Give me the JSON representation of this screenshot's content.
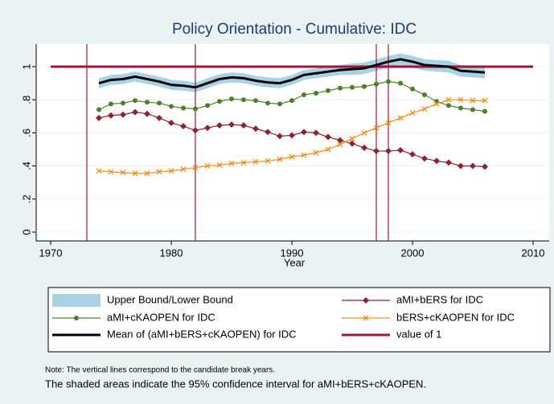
{
  "chart_data": {
    "type": "line",
    "title": "Policy Orientation - Cumulative: IDC",
    "x_label": "Year",
    "x": [
      1974,
      1975,
      1976,
      1977,
      1978,
      1979,
      1980,
      1981,
      1982,
      1983,
      1984,
      1985,
      1986,
      1987,
      1988,
      1989,
      1990,
      1991,
      1992,
      1993,
      1994,
      1995,
      1996,
      1997,
      1998,
      1999,
      2000,
      2001,
      2002,
      2003,
      2004,
      2005,
      2006
    ],
    "xlim": [
      1970,
      2010
    ],
    "xticks": [
      1970,
      1980,
      1990,
      2000,
      2010
    ],
    "ylim": [
      0,
      1
    ],
    "yticks": [
      0,
      {
        "value": 0.2,
        "label": ".2"
      },
      {
        "value": 0.4,
        "label": ".4"
      },
      {
        "value": 0.6,
        "label": ".6"
      },
      {
        "value": 0.8,
        "label": ".8"
      },
      1
    ],
    "grid": true,
    "band": {
      "name": "Upper Bound/Lower Bound",
      "color": "#a9d3e4",
      "upper": [
        0.93,
        0.95,
        0.955,
        0.97,
        0.955,
        0.94,
        0.92,
        0.915,
        0.905,
        0.93,
        0.955,
        0.965,
        0.96,
        0.945,
        0.935,
        0.93,
        0.95,
        0.98,
        0.99,
        1.0,
        1.01,
        1.02,
        1.025,
        1.045,
        1.065,
        1.08,
        1.065,
        1.045,
        1.04,
        1.035,
        1.01,
        1.005,
        1.0
      ],
      "lower": [
        0.87,
        0.89,
        0.895,
        0.91,
        0.895,
        0.88,
        0.86,
        0.855,
        0.845,
        0.87,
        0.895,
        0.905,
        0.9,
        0.885,
        0.875,
        0.87,
        0.89,
        0.92,
        0.93,
        0.94,
        0.95,
        0.95,
        0.955,
        0.975,
        0.995,
        1.01,
        0.995,
        0.975,
        0.97,
        0.965,
        0.94,
        0.935,
        0.93
      ]
    },
    "series": [
      {
        "name": "aMI+bERS for IDC",
        "color": "#8b2332",
        "marker": "diamond",
        "values": [
          0.69,
          0.705,
          0.71,
          0.725,
          0.715,
          0.69,
          0.66,
          0.64,
          0.615,
          0.63,
          0.645,
          0.65,
          0.645,
          0.625,
          0.605,
          0.58,
          0.585,
          0.605,
          0.6,
          0.575,
          0.555,
          0.535,
          0.51,
          0.49,
          0.49,
          0.495,
          0.47,
          0.445,
          0.43,
          0.42,
          0.4,
          0.4,
          0.395
        ]
      },
      {
        "name": "aMI+cKAOPEN for IDC",
        "color": "#4f7f2a",
        "marker": "circle",
        "values": [
          0.74,
          0.775,
          0.78,
          0.795,
          0.785,
          0.78,
          0.76,
          0.75,
          0.745,
          0.765,
          0.79,
          0.805,
          0.8,
          0.795,
          0.78,
          0.775,
          0.795,
          0.83,
          0.84,
          0.855,
          0.87,
          0.875,
          0.88,
          0.895,
          0.91,
          0.9,
          0.865,
          0.83,
          0.79,
          0.765,
          0.75,
          0.74,
          0.73
        ]
      },
      {
        "name": "bERS+cKAOPEN for IDC",
        "color": "#f08c1a",
        "marker": "x",
        "values": [
          0.37,
          0.365,
          0.36,
          0.355,
          0.355,
          0.365,
          0.37,
          0.38,
          0.39,
          0.4,
          0.405,
          0.415,
          0.42,
          0.425,
          0.43,
          0.44,
          0.455,
          0.465,
          0.48,
          0.5,
          0.53,
          0.565,
          0.6,
          0.63,
          0.66,
          0.69,
          0.72,
          0.745,
          0.775,
          0.8,
          0.8,
          0.795,
          0.795
        ]
      },
      {
        "name": "Mean of (aMI+bERS+cKAOPEN) for IDC",
        "color": "#000000",
        "marker": "none",
        "width": 3,
        "values": [
          0.9,
          0.92,
          0.925,
          0.94,
          0.925,
          0.91,
          0.89,
          0.885,
          0.875,
          0.9,
          0.925,
          0.935,
          0.93,
          0.915,
          0.905,
          0.9,
          0.92,
          0.95,
          0.96,
          0.97,
          0.98,
          0.985,
          0.99,
          1.01,
          1.03,
          1.045,
          1.03,
          1.01,
          1.005,
          1.0,
          0.975,
          0.97,
          0.965
        ]
      }
    ],
    "hline": {
      "name": "value of 1",
      "value": 1,
      "color": "#a0163a"
    },
    "vlines": {
      "values": [
        1973,
        1982,
        1997,
        1998
      ],
      "color": "#a0163a"
    },
    "notes": [
      "Note: The vertical lines correspond to the candidate break years.",
      "The shaded areas indicate the 95% confidence interval for aMI+bERS+cKAOPEN."
    ]
  }
}
